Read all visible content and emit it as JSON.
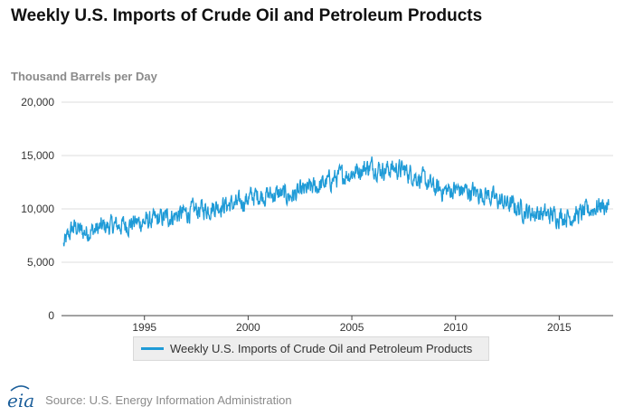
{
  "title": "Weekly U.S. Imports of Crude Oil and Petroleum Products",
  "source": "Source: U.S. Energy Information Administration",
  "logo_text": "eia",
  "colors": {
    "series": "#1f9bd7",
    "grid": "#dddddd",
    "axis": "#444444"
  },
  "chart_data": {
    "type": "line",
    "title": "Weekly U.S. Imports of Crude Oil and Petroleum Products",
    "ylabel": "Thousand Barrels per Day",
    "xlabel": "",
    "xlim": [
      1991.0,
      2017.6
    ],
    "ylim": [
      0,
      20000
    ],
    "yticks": [
      "0",
      "5,000",
      "10,000",
      "15,000",
      "20,000"
    ],
    "ytick_values": [
      0,
      5000,
      10000,
      15000,
      20000
    ],
    "xticks": [
      "1995",
      "2000",
      "2005",
      "2010",
      "2015"
    ],
    "xtick_values": [
      1995,
      2000,
      2005,
      2010,
      2015
    ],
    "grid": true,
    "legend_position": "bottom-center",
    "series": [
      {
        "name": "Weekly U.S. Imports of Crude Oil and Petroleum Products",
        "x": [
          1991.1,
          1991.3,
          1991.5,
          1991.7,
          1992.0,
          1992.3,
          1992.6,
          1993.0,
          1993.5,
          1994.0,
          1994.5,
          1995.0,
          1995.5,
          1996.0,
          1996.5,
          1997.0,
          1997.5,
          1998.0,
          1998.5,
          1999.0,
          1999.5,
          2000.0,
          2000.5,
          2001.0,
          2001.5,
          2002.0,
          2002.5,
          2003.0,
          2003.5,
          2004.0,
          2004.5,
          2005.0,
          2005.5,
          2006.0,
          2006.5,
          2007.0,
          2007.5,
          2008.0,
          2008.5,
          2009.0,
          2009.5,
          2010.0,
          2010.5,
          2011.0,
          2011.5,
          2012.0,
          2012.5,
          2013.0,
          2013.5,
          2014.0,
          2014.5,
          2015.0,
          2015.5,
          2016.0,
          2016.5,
          2017.0,
          2017.4
        ],
        "values": [
          6600,
          7300,
          8100,
          8300,
          7800,
          7900,
          8000,
          8300,
          8400,
          8500,
          8700,
          8800,
          8900,
          9200,
          9400,
          9600,
          9900,
          10000,
          10300,
          10400,
          10400,
          11000,
          11300,
          11300,
          11400,
          11200,
          11500,
          11900,
          12200,
          12700,
          13100,
          13400,
          13800,
          14000,
          13700,
          13800,
          13600,
          13200,
          12600,
          11900,
          11700,
          11800,
          11700,
          11500,
          11400,
          10800,
          10500,
          10100,
          9700,
          9600,
          9400,
          9400,
          9300,
          9500,
          9900,
          10400,
          10100
        ]
      }
    ]
  }
}
